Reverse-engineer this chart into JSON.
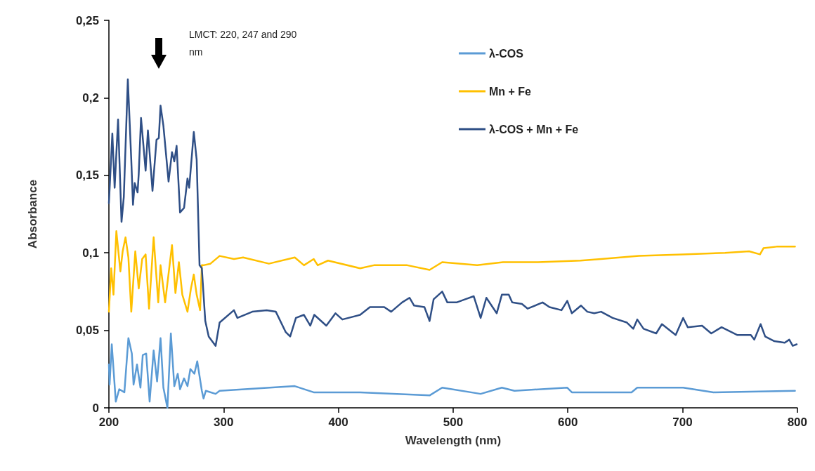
{
  "chart_data": {
    "type": "line",
    "xlabel": "Wavelength (nm)",
    "ylabel": "Absorbance",
    "annotations": [
      "LMCT: 220, 247 and 290 nm"
    ],
    "xlim": [
      200,
      800
    ],
    "xticks": [
      200,
      300,
      400,
      500,
      600,
      700,
      800
    ],
    "ylim": [
      0,
      0.25
    ],
    "yticks": [
      {
        "value": 0,
        "label": "0"
      },
      {
        "value": 0.05,
        "label": "0,05"
      },
      {
        "value": 0.1,
        "label": "0,1"
      },
      {
        "value": 0.15,
        "label": "0,15"
      },
      {
        "value": 0.2,
        "label": "0,2"
      },
      {
        "value": 0.25,
        "label": "0,25"
      }
    ],
    "grid": false,
    "legend": "top right",
    "marker": "none",
    "line_style": "solid",
    "series": [
      {
        "name": "λ-COS",
        "color": "#5b9bd5",
        "x": [
          200,
          200.6,
          202.5,
          206,
          209,
          213.5,
          217,
          220,
          221.5,
          224.5,
          227.5,
          229.5,
          232.5,
          235.5,
          239,
          242,
          245,
          247.5,
          251,
          254,
          257,
          260,
          262,
          265.5,
          268.5,
          271,
          274.5,
          277,
          281,
          282.5,
          284.5,
          293,
          296.5,
          362,
          378.5,
          419,
          479.5,
          490.5,
          524,
          542.5,
          553.5,
          599.5,
          603.5,
          655.5,
          660.5,
          700.5,
          727,
          798
        ],
        "values": [
          0.028,
          0.015,
          0.041,
          0.004,
          0.012,
          0.01,
          0.045,
          0.035,
          0.015,
          0.028,
          0.013,
          0.034,
          0.035,
          0.004,
          0.037,
          0.017,
          0.045,
          0.013,
          0,
          0.048,
          0.014,
          0.022,
          0.012,
          0.019,
          0.014,
          0.025,
          0.022,
          0.03,
          0.011,
          0.006,
          0.011,
          0.009,
          0.011,
          0.014,
          0.01,
          0.01,
          0.008,
          0.013,
          0.009,
          0.013,
          0.011,
          0.013,
          0.01,
          0.01,
          0.013,
          0.013,
          0.01,
          0.011
        ]
      },
      {
        "name": "Mn + Fe",
        "color": "#ffc000",
        "x": [
          200,
          202,
          204,
          206.5,
          210,
          212,
          214.5,
          217,
          219.5,
          223,
          226,
          229,
          232,
          235,
          239,
          243,
          245,
          249,
          255,
          258,
          261,
          264,
          268.5,
          271.5,
          274,
          276.5,
          279.5,
          281,
          282.5,
          288.5,
          296.5,
          309,
          317,
          339.5,
          362,
          370,
          378.5,
          382,
          391,
          419,
          431,
          460,
          479.5,
          490.5,
          521,
          543.5,
          574,
          611,
          629,
          662,
          700,
          737,
          758,
          767.5,
          770.5,
          782,
          798
        ],
        "values": [
          0.062,
          0.09,
          0.073,
          0.114,
          0.088,
          0.101,
          0.11,
          0.097,
          0.062,
          0.101,
          0.077,
          0.096,
          0.099,
          0.064,
          0.11,
          0.068,
          0.092,
          0.068,
          0.105,
          0.074,
          0.094,
          0.073,
          0.062,
          0.077,
          0.086,
          0.073,
          0.063,
          0.092,
          0.092,
          0.093,
          0.098,
          0.096,
          0.097,
          0.093,
          0.097,
          0.092,
          0.096,
          0.092,
          0.095,
          0.09,
          0.092,
          0.092,
          0.089,
          0.094,
          0.092,
          0.094,
          0.094,
          0.095,
          0.096,
          0.098,
          0.099,
          0.1,
          0.101,
          0.099,
          0.103,
          0.104,
          0.104
        ]
      },
      {
        "name": "λ-COS + Mn + Fe",
        "color": "#2f4f86",
        "x": [
          200,
          203,
          205,
          208,
          211,
          213,
          216.5,
          219.5,
          221,
          222.5,
          225,
          226,
          228,
          232,
          234,
          238,
          241.5,
          243.5,
          245,
          247.5,
          252,
          255,
          257,
          259,
          262,
          265.5,
          268.5,
          270,
          274,
          276.5,
          279,
          281,
          284,
          287,
          293,
          296.5,
          309,
          312,
          325,
          337.5,
          345.5,
          354,
          358,
          363,
          370,
          375.5,
          379,
          389.5,
          397.5,
          403.5,
          419,
          427.5,
          440,
          446,
          455.5,
          462,
          466,
          475,
          479.5,
          483,
          490.5,
          495,
          503,
          510.5,
          518,
          524,
          529,
          538,
          542.5,
          548.5,
          551.5,
          560,
          565,
          578,
          584,
          594.5,
          599.5,
          603.5,
          611.5,
          617,
          623,
          629,
          639,
          651.5,
          657,
          660.5,
          666,
          677,
          682,
          694,
          700.5,
          704.5,
          717,
          725,
          734,
          747.5,
          759.5,
          762.5,
          768,
          772,
          780,
          789,
          793,
          796,
          799.5
        ],
        "values": [
          0.132,
          0.177,
          0.142,
          0.186,
          0.12,
          0.136,
          0.212,
          0.16,
          0.131,
          0.145,
          0.139,
          0.151,
          0.187,
          0.153,
          0.179,
          0.14,
          0.173,
          0.174,
          0.195,
          0.182,
          0.146,
          0.165,
          0.159,
          0.169,
          0.126,
          0.129,
          0.148,
          0.142,
          0.178,
          0.16,
          0.092,
          0.09,
          0.056,
          0.046,
          0.04,
          0.055,
          0.063,
          0.058,
          0.062,
          0.063,
          0.062,
          0.049,
          0.046,
          0.058,
          0.06,
          0.053,
          0.06,
          0.053,
          0.061,
          0.057,
          0.06,
          0.065,
          0.065,
          0.062,
          0.068,
          0.071,
          0.066,
          0.065,
          0.056,
          0.07,
          0.075,
          0.068,
          0.068,
          0.07,
          0.072,
          0.058,
          0.071,
          0.061,
          0.073,
          0.073,
          0.068,
          0.067,
          0.064,
          0.068,
          0.065,
          0.063,
          0.069,
          0.061,
          0.066,
          0.062,
          0.061,
          0.062,
          0.058,
          0.055,
          0.051,
          0.057,
          0.051,
          0.048,
          0.054,
          0.047,
          0.058,
          0.052,
          0.053,
          0.048,
          0.052,
          0.047,
          0.047,
          0.044,
          0.054,
          0.046,
          0.043,
          0.042,
          0.044,
          0.04,
          0.041
        ]
      }
    ]
  }
}
